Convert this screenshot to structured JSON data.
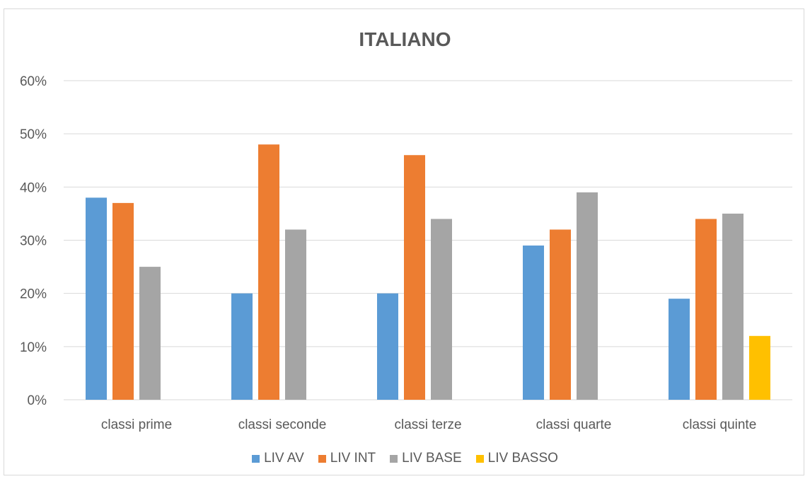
{
  "colors": {
    "LIV AV": "#5b9bd5",
    "LIV INT": "#ed7d31",
    "LIV BASE": "#a5a5a5",
    "LIV BASSO": "#ffc000",
    "grid": "#d9d9d9",
    "text": "#595959"
  },
  "chart_data": {
    "type": "bar",
    "title": "ITALIANO",
    "xlabel": "",
    "ylabel": "",
    "categories": [
      "classi prime",
      "classi seconde",
      "classi terze",
      "classi quarte",
      "classi quinte"
    ],
    "series": [
      {
        "name": "LIV AV",
        "values": [
          38,
          20,
          20,
          29,
          19
        ]
      },
      {
        "name": "LIV INT",
        "values": [
          37,
          48,
          46,
          32,
          34
        ]
      },
      {
        "name": "LIV BASE",
        "values": [
          25,
          32,
          34,
          39,
          35
        ]
      },
      {
        "name": "LIV BASSO",
        "values": [
          0,
          0,
          0,
          0,
          12
        ]
      }
    ],
    "ylim": [
      0,
      60
    ],
    "yticks": [
      "0%",
      "10%",
      "20%",
      "30%",
      "40%",
      "50%",
      "60%"
    ],
    "grid": true,
    "legend": "bottom"
  }
}
